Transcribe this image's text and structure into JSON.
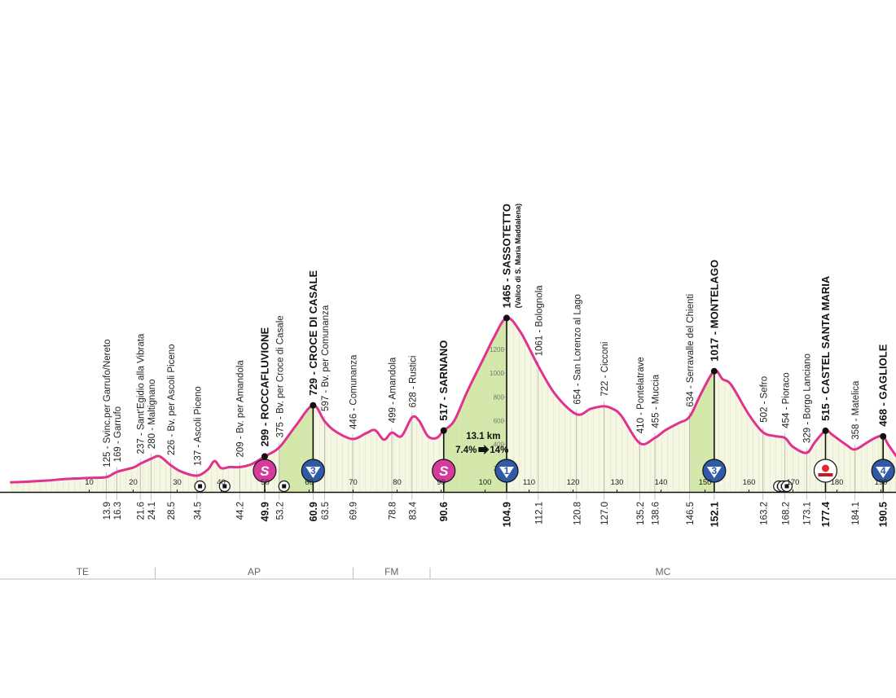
{
  "chart_data": {
    "type": "area",
    "title": "",
    "xlabel": "",
    "ylabel": "",
    "xlim": [
      -8,
      200
    ],
    "ylim": [
      0,
      1500
    ],
    "x_ticks": [
      10,
      20,
      30,
      40,
      50,
      60,
      70,
      80,
      90,
      100,
      110,
      120,
      130,
      140,
      150,
      160,
      170,
      180,
      190
    ],
    "altitude_ticks": [
      200,
      400,
      600,
      800,
      1000,
      1200
    ],
    "profile": [
      [
        -8,
        80
      ],
      [
        0,
        95
      ],
      [
        5,
        110
      ],
      [
        10,
        118
      ],
      [
        13.9,
        125
      ],
      [
        16.3,
        169
      ],
      [
        20,
        205
      ],
      [
        21.6,
        237
      ],
      [
        24.1,
        280
      ],
      [
        26,
        300
      ],
      [
        28.5,
        226
      ],
      [
        31,
        170
      ],
      [
        34.5,
        137
      ],
      [
        37,
        190
      ],
      [
        38.5,
        260
      ],
      [
        40,
        200
      ],
      [
        42,
        210
      ],
      [
        44.2,
        209
      ],
      [
        47,
        235
      ],
      [
        49.9,
        299
      ],
      [
        53.2,
        375
      ],
      [
        57,
        560
      ],
      [
        60.9,
        729
      ],
      [
        63.5,
        597
      ],
      [
        66,
        510
      ],
      [
        69.9,
        446
      ],
      [
        73,
        495
      ],
      [
        75,
        520
      ],
      [
        77,
        440
      ],
      [
        78.8,
        499
      ],
      [
        81,
        470
      ],
      [
        83.4,
        628
      ],
      [
        85,
        600
      ],
      [
        87,
        470
      ],
      [
        89,
        455
      ],
      [
        90.6,
        517
      ],
      [
        93,
        600
      ],
      [
        96,
        850
      ],
      [
        100,
        1150
      ],
      [
        102,
        1300
      ],
      [
        104.9,
        1465
      ],
      [
        108,
        1350
      ],
      [
        112.1,
        1061
      ],
      [
        116,
        820
      ],
      [
        120.8,
        654
      ],
      [
        124,
        700
      ],
      [
        127,
        722
      ],
      [
        129,
        700
      ],
      [
        131,
        640
      ],
      [
        135.2,
        410
      ],
      [
        138.6,
        455
      ],
      [
        141,
        520
      ],
      [
        144,
        580
      ],
      [
        146.5,
        634
      ],
      [
        149,
        820
      ],
      [
        152.1,
        1017
      ],
      [
        154,
        950
      ],
      [
        156,
        900
      ],
      [
        160,
        650
      ],
      [
        163.2,
        502
      ],
      [
        166,
        470
      ],
      [
        168.2,
        454
      ],
      [
        170,
        380
      ],
      [
        173.1,
        329
      ],
      [
        175,
        420
      ],
      [
        177.4,
        515
      ],
      [
        179,
        480
      ],
      [
        182,
        400
      ],
      [
        184.1,
        358
      ],
      [
        187,
        420
      ],
      [
        189,
        460
      ],
      [
        190.5,
        468
      ],
      [
        192,
        380
      ],
      [
        195,
        250
      ],
      [
        200,
        200
      ]
    ],
    "waypoints": [
      {
        "km": 13.9,
        "label": "125 - Svinc.per Garrufo/Nereto"
      },
      {
        "km": 16.3,
        "label": "169 - Garrufo"
      },
      {
        "km": 21.6,
        "label": "237 - Sant'Egidio alla Vibrata"
      },
      {
        "km": 24.1,
        "label": "280 - Maltignano"
      },
      {
        "km": 28.5,
        "label": "226 - Bv. per Ascoli Piceno"
      },
      {
        "km": 34.5,
        "label": "137 - Ascoli Piceno"
      },
      {
        "km": 44.2,
        "label": "209 - Bv. per Amandola"
      },
      {
        "km": 49.9,
        "label": "299 - ROCCAFLUVIONE",
        "bold": true,
        "badge": "S"
      },
      {
        "km": 53.2,
        "label": "375 - Bv. per Croce di Casale"
      },
      {
        "km": 60.9,
        "label": "729 - CROCE DI CASALE",
        "bold": true,
        "badge": "3"
      },
      {
        "km": 63.5,
        "label": "597 - Bv. per Comunanza"
      },
      {
        "km": 69.9,
        "label": "446 - Comunanza"
      },
      {
        "km": 78.8,
        "label": "499 - Amandola"
      },
      {
        "km": 83.4,
        "label": "628 - Rustici"
      },
      {
        "km": 90.6,
        "label": "517 - SARNANO",
        "bold": true,
        "badge": "S"
      },
      {
        "km": 104.9,
        "label": "1465 - SASSOTETTO",
        "sublabel": "(Valico di S. Maria Maddalena)",
        "bold": true,
        "badge": "1"
      },
      {
        "km": 112.1,
        "label": "1061 - Bolognola"
      },
      {
        "km": 120.8,
        "label": "654 - San Lorenzo al Lago"
      },
      {
        "km": 127.0,
        "label": "722 - Cicconi"
      },
      {
        "km": 135.2,
        "label": "410 - Pontelatrave"
      },
      {
        "km": 138.6,
        "label": "455 - Muccia"
      },
      {
        "km": 146.5,
        "label": "634 - Serravalle del Chienti"
      },
      {
        "km": 152.1,
        "label": "1017 - MONTELAGO",
        "bold": true,
        "badge": "3"
      },
      {
        "km": 163.2,
        "label": "502 - Sefro"
      },
      {
        "km": 168.2,
        "label": "454 - Pioraco"
      },
      {
        "km": 173.1,
        "label": "329 - Borgo Lanciano"
      },
      {
        "km": 177.4,
        "label": "515 - CASTEL SANTA MARIA",
        "bold": true,
        "badge": "RB"
      },
      {
        "km": 184.1,
        "label": "358 - Matelica"
      },
      {
        "km": 190.5,
        "label": "468 - GAGLIOLE",
        "bold": true,
        "badge": "4"
      }
    ],
    "km_markers": [
      {
        "km": 13.9,
        "label": "13.9"
      },
      {
        "km": 16.3,
        "label": "16.3"
      },
      {
        "km": 21.6,
        "label": "21.6"
      },
      {
        "km": 24.1,
        "label": "24.1"
      },
      {
        "km": 28.5,
        "label": "28.5"
      },
      {
        "km": 34.5,
        "label": "34.5"
      },
      {
        "km": 44.2,
        "label": "44.2"
      },
      {
        "km": 49.9,
        "label": "49.9",
        "bold": true
      },
      {
        "km": 53.2,
        "label": "53.2"
      },
      {
        "km": 60.9,
        "label": "60.9",
        "bold": true
      },
      {
        "km": 63.5,
        "label": "63.5"
      },
      {
        "km": 69.9,
        "label": "69.9"
      },
      {
        "km": 78.8,
        "label": "78.8"
      },
      {
        "km": 83.4,
        "label": "83.4"
      },
      {
        "km": 90.6,
        "label": "90.6",
        "bold": true
      },
      {
        "km": 104.9,
        "label": "104.9",
        "bold": true
      },
      {
        "km": 112.1,
        "label": "112.1"
      },
      {
        "km": 120.8,
        "label": "120.8"
      },
      {
        "km": 127.0,
        "label": "127.0"
      },
      {
        "km": 135.2,
        "label": "135.2"
      },
      {
        "km": 138.6,
        "label": "138.6"
      },
      {
        "km": 146.5,
        "label": "146.5"
      },
      {
        "km": 152.1,
        "label": "152.1",
        "bold": true
      },
      {
        "km": 163.2,
        "label": "163.2"
      },
      {
        "km": 168.2,
        "label": "168.2"
      },
      {
        "km": 173.1,
        "label": "173.1"
      },
      {
        "km": 177.4,
        "label": "177.4",
        "bold": true
      },
      {
        "km": 184.1,
        "label": "184.1"
      },
      {
        "km": 190.5,
        "label": "190.5",
        "bold": true
      }
    ],
    "climbs": [
      {
        "from_km": 53.2,
        "to_km": 60.9
      },
      {
        "from_km": 90.6,
        "to_km": 104.9
      },
      {
        "from_km": 146.5,
        "to_km": 152.1
      },
      {
        "from_km": 190.0,
        "to_km": 190.5
      }
    ],
    "climb_info": {
      "km": 104.9,
      "length": "13.1 km",
      "gradient": "7.4%",
      "max_gradient": "14%"
    },
    "tunnels": [
      35.2,
      40.8,
      54.3,
      166.8,
      167.7,
      168.6
    ],
    "regions": [
      {
        "label": "TE",
        "from_km": -8,
        "to_km": 25
      },
      {
        "label": "AP",
        "from_km": 25,
        "to_km": 70
      },
      {
        "label": "FM",
        "from_km": 70,
        "to_km": 87.5
      },
      {
        "label": "MC",
        "from_km": 87.5,
        "to_km": 200
      }
    ],
    "colors": {
      "profile_line": "#e0328f",
      "area_fill": "#f6f7e2",
      "climb_fill": "#cfe6a4",
      "badge_sprint": "#d43b9c",
      "badge_kom": "#2e5aa6"
    }
  }
}
